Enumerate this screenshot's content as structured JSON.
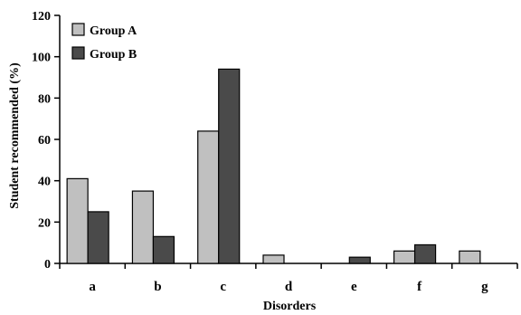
{
  "chart_data": {
    "type": "bar",
    "xlabel": "Disorders",
    "ylabel": "Student recommended (%)",
    "ylim": [
      0,
      120
    ],
    "yticks": [
      0,
      20,
      40,
      60,
      80,
      100,
      120
    ],
    "categories": [
      "a",
      "b",
      "c",
      "d",
      "e",
      "f",
      "g"
    ],
    "series": [
      {
        "name": "Group A",
        "color": "#c0c0c0",
        "values": [
          41,
          35,
          64,
          4,
          0,
          6,
          6
        ]
      },
      {
        "name": "Group B",
        "color": "#4a4a4a",
        "values": [
          25,
          13,
          94,
          0,
          3,
          9,
          0
        ]
      }
    ],
    "legend_position": "top-left",
    "grid": false
  }
}
